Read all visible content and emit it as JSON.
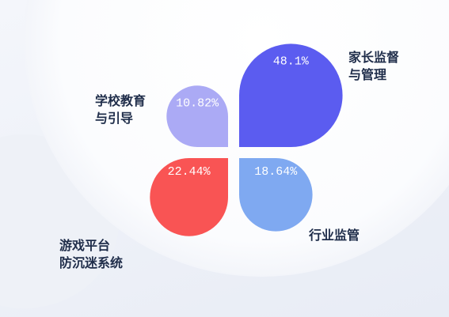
{
  "chart_data": {
    "type": "pie",
    "categories": [
      "家长监督\n与管理",
      "学校教育\n与引导",
      "游戏平台\n防沉迷系统",
      "行业监管"
    ],
    "values": [
      48.1,
      10.82,
      22.44,
      18.64
    ],
    "value_labels": [
      "48.1%",
      "10.82%",
      "22.44%",
      "18.64%"
    ],
    "colors": [
      "#5b5cf0",
      "#abaaf5",
      "#f95454",
      "#7fa9f1"
    ]
  }
}
